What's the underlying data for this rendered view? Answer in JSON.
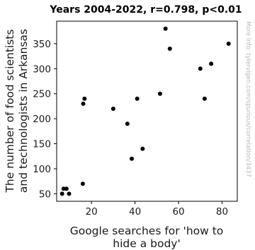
{
  "chart_data": {
    "type": "scatter",
    "title": "Years 2004-2022, r=0.798, p<0.01",
    "xlabel_lines": [
      "Google searches for 'how to",
      "hide a body'"
    ],
    "ylabel_lines": [
      "The number of food scientists",
      "and technologists in Arkansas"
    ],
    "xlim": [
      4,
      87
    ],
    "ylim": [
      35,
      395
    ],
    "xticks": [
      20,
      40,
      60,
      80
    ],
    "yticks": [
      50,
      100,
      150,
      200,
      250,
      300,
      350
    ],
    "grid": false,
    "point_color": "#000000",
    "points": [
      {
        "x": 6.5,
        "y": 50
      },
      {
        "x": 7.2,
        "y": 60
      },
      {
        "x": 8.5,
        "y": 60
      },
      {
        "x": 9.7,
        "y": 50
      },
      {
        "x": 16.0,
        "y": 70
      },
      {
        "x": 16.2,
        "y": 230
      },
      {
        "x": 16.8,
        "y": 240
      },
      {
        "x": 30.0,
        "y": 220
      },
      {
        "x": 36.5,
        "y": 190
      },
      {
        "x": 38.5,
        "y": 120
      },
      {
        "x": 41.0,
        "y": 240
      },
      {
        "x": 43.5,
        "y": 140
      },
      {
        "x": 51.5,
        "y": 250
      },
      {
        "x": 54.0,
        "y": 380
      },
      {
        "x": 56.0,
        "y": 340
      },
      {
        "x": 70.0,
        "y": 300
      },
      {
        "x": 72.0,
        "y": 240
      },
      {
        "x": 75.0,
        "y": 310
      },
      {
        "x": 83.0,
        "y": 350
      }
    ]
  },
  "watermark": "More info: tylervigen.com/spurious/correlation/3437"
}
